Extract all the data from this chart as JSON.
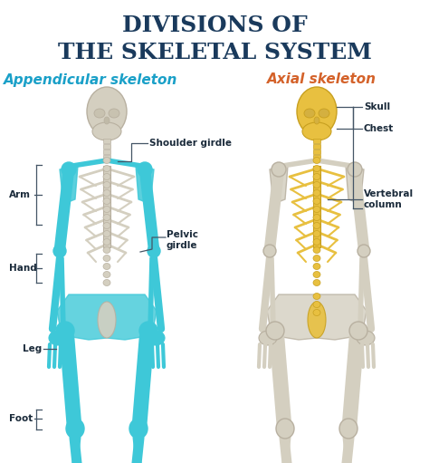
{
  "title_line1": "DIVISIONS OF",
  "title_line2": "THE SKELETAL SYSTEM",
  "title_color": "#1a3a5c",
  "title_fontsize": 18,
  "subtitle_left": "Appendicular skeleton",
  "subtitle_right": "Axial skeleton",
  "subtitle_left_color": "#1aa0c8",
  "subtitle_right_color": "#d4622a",
  "subtitle_fontsize": 11,
  "bg_color": "#ffffff",
  "appendicular_color": "#3ec8d8",
  "axial_color": "#e8c040",
  "bone_color": "#d4cfc0",
  "bone_edge": "#b8b0a0",
  "label_fontsize": 7.5,
  "label_color": "#1a2a3a",
  "line_color": "#445566"
}
